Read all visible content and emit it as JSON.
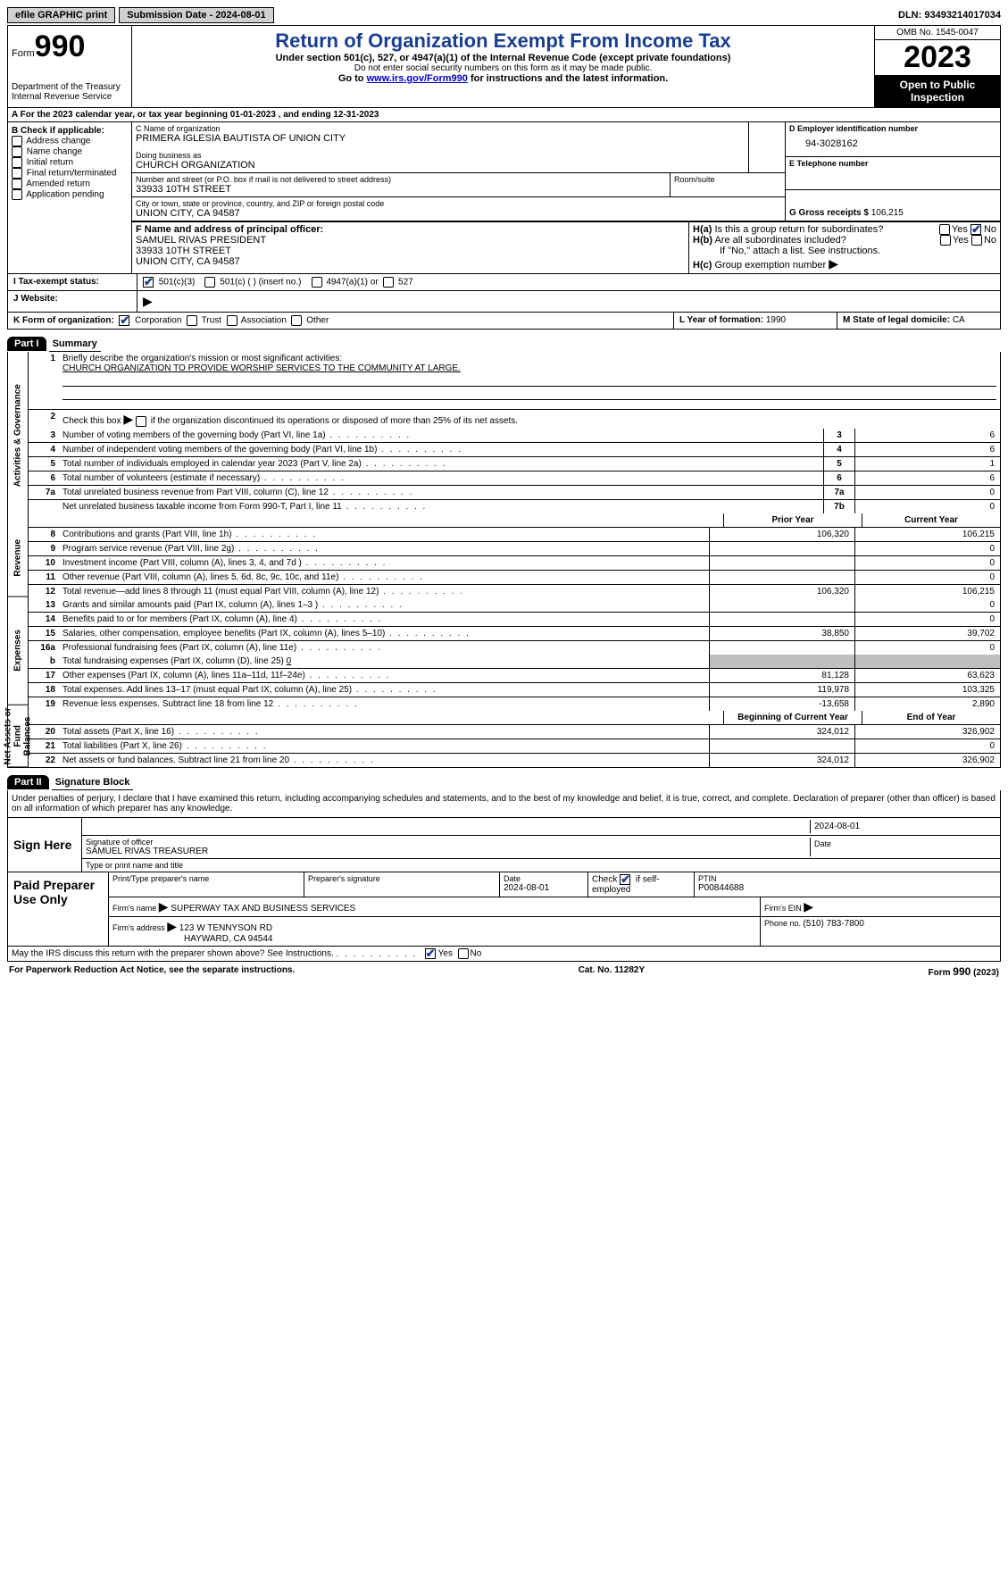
{
  "top": {
    "efile": "efile GRAPHIC print",
    "submission": "Submission Date - 2024-08-01",
    "dln": "DLN: 93493214017034"
  },
  "header": {
    "form_prefix": "Form",
    "form_num": "990",
    "dept": "Department of the Treasury",
    "irs": "Internal Revenue Service",
    "title": "Return of Organization Exempt From Income Tax",
    "sub1": "Under section 501(c), 527, or 4947(a)(1) of the Internal Revenue Code (except private foundations)",
    "sub2": "Do not enter social security numbers on this form as it may be made public.",
    "sub3_a": "Go to ",
    "sub3_link": "www.irs.gov/Form990",
    "sub3_b": " for instructions and the latest information.",
    "omb": "OMB No. 1545-0047",
    "year": "2023",
    "open": "Open to Public Inspection"
  },
  "rowA": {
    "prefix": "A For the 2023 calendar year, or tax year beginning ",
    "begin": "01-01-2023",
    "mid": "   , and ending ",
    "end": "12-31-2023"
  },
  "B": {
    "label": "B Check if applicable:",
    "items": [
      "Address change",
      "Name change",
      "Initial return",
      "Final return/terminated",
      "Amended return",
      "Application pending"
    ]
  },
  "C": {
    "name_lbl": "C Name of organization",
    "name": "PRIMERA IGLESIA BAUTISTA OF UNION CITY",
    "dba_lbl": "Doing business as",
    "dba": "CHURCH ORGANIZATION",
    "addr_lbl": "Number and street (or P.O. box if mail is not delivered to street address)",
    "addr": "33933 10TH STREET",
    "room_lbl": "Room/suite",
    "city_lbl": "City or town, state or province, country, and ZIP or foreign postal code",
    "city": "UNION CITY, CA  94587"
  },
  "D": {
    "lbl": "D Employer identification number",
    "val": "94-3028162"
  },
  "E": {
    "lbl": "E Telephone number"
  },
  "G": {
    "lbl": "G Gross receipts $ ",
    "val": "106,215"
  },
  "F": {
    "lbl": "F  Name and address of principal officer:",
    "name": "SAMUEL RIVAS PRESIDENT",
    "addr1": "33933 10TH STREET",
    "addr2": "UNION CITY, CA  94587"
  },
  "H": {
    "a": "H(a)  Is this a group return for subordinates?",
    "b": "H(b)  Are all subordinates included?",
    "b_note": "If \"No,\" attach a list. See instructions.",
    "c": "H(c)  Group exemption number ",
    "yes": "Yes",
    "no": "No"
  },
  "I": {
    "lbl": "I    Tax-exempt status:",
    "o1": "501(c)(3)",
    "o2": "501(c) (  ) (insert no.)",
    "o3": "4947(a)(1) or",
    "o4": "527"
  },
  "J": {
    "lbl": "J    Website: "
  },
  "K": {
    "lbl": "K Form of organization:",
    "o1": "Corporation",
    "o2": "Trust",
    "o3": "Association",
    "o4": "Other"
  },
  "L": {
    "lbl": "L Year of formation: ",
    "val": "1990"
  },
  "M": {
    "lbl": "M State of legal domicile: ",
    "val": "CA"
  },
  "part1": {
    "hdr": "Part I",
    "title": "Summary"
  },
  "side": {
    "ag": "Activities & Governance",
    "rev": "Revenue",
    "exp": "Expenses",
    "na": "Net Assets or Fund Balances"
  },
  "s1": {
    "lbl": "Briefly describe the organization's mission or most significant activities:",
    "val": "CHURCH ORGANIZATION TO PROVIDE WORSHIP SERVICES TO THE COMMUNITY AT LARGE."
  },
  "s2": "Check this box        if the organization discontinued its operations or disposed of more than 25% of its net assets.",
  "rows_ag": [
    {
      "n": "3",
      "d": "Number of voting members of the governing body (Part VI, line 1a)",
      "bx": "3",
      "cv": "6"
    },
    {
      "n": "4",
      "d": "Number of independent voting members of the governing body (Part VI, line 1b)",
      "bx": "4",
      "cv": "6"
    },
    {
      "n": "5",
      "d": "Total number of individuals employed in calendar year 2023 (Part V, line 2a)",
      "bx": "5",
      "cv": "1"
    },
    {
      "n": "6",
      "d": "Total number of volunteers (estimate if necessary)",
      "bx": "6",
      "cv": "6"
    },
    {
      "n": "7a",
      "d": "Total unrelated business revenue from Part VIII, column (C), line 12",
      "bx": "7a",
      "cv": "0"
    },
    {
      "n": "",
      "d": "Net unrelated business taxable income from Form 990-T, Part I, line 11",
      "bx": "7b",
      "cv": "0"
    }
  ],
  "col_hdr": {
    "prior": "Prior Year",
    "current": "Current Year"
  },
  "rows_rev": [
    {
      "n": "8",
      "d": "Contributions and grants (Part VIII, line 1h)",
      "pv": "106,320",
      "cv": "106,215"
    },
    {
      "n": "9",
      "d": "Program service revenue (Part VIII, line 2g)",
      "pv": "",
      "cv": "0"
    },
    {
      "n": "10",
      "d": "Investment income (Part VIII, column (A), lines 3, 4, and 7d )",
      "pv": "",
      "cv": "0"
    },
    {
      "n": "11",
      "d": "Other revenue (Part VIII, column (A), lines 5, 6d, 8c, 9c, 10c, and 11e)",
      "pv": "",
      "cv": "0"
    },
    {
      "n": "12",
      "d": "Total revenue—add lines 8 through 11 (must equal Part VIII, column (A), line 12)",
      "pv": "106,320",
      "cv": "106,215"
    }
  ],
  "rows_exp": [
    {
      "n": "13",
      "d": "Grants and similar amounts paid (Part IX, column (A), lines 1–3 )",
      "pv": "",
      "cv": "0"
    },
    {
      "n": "14",
      "d": "Benefits paid to or for members (Part IX, column (A), line 4)",
      "pv": "",
      "cv": "0"
    },
    {
      "n": "15",
      "d": "Salaries, other compensation, employee benefits (Part IX, column (A), lines 5–10)",
      "pv": "38,850",
      "cv": "39,702"
    },
    {
      "n": "16a",
      "d": "Professional fundraising fees (Part IX, column (A), line 11e)",
      "pv": "",
      "cv": "0"
    }
  ],
  "row_16b": {
    "n": "b",
    "d_a": "Total fundraising expenses (Part IX, column (D), line 25) ",
    "d_b": "0"
  },
  "rows_exp2": [
    {
      "n": "17",
      "d": "Other expenses (Part IX, column (A), lines 11a–11d, 11f–24e)",
      "pv": "81,128",
      "cv": "63,623"
    },
    {
      "n": "18",
      "d": "Total expenses. Add lines 13–17 (must equal Part IX, column (A), line 25)",
      "pv": "119,978",
      "cv": "103,325"
    },
    {
      "n": "19",
      "d": "Revenue less expenses. Subtract line 18 from line 12",
      "pv": "-13,658",
      "cv": "2,890"
    }
  ],
  "col_hdr2": {
    "begin": "Beginning of Current Year",
    "end": "End of Year"
  },
  "rows_na": [
    {
      "n": "20",
      "d": "Total assets (Part X, line 16)",
      "pv": "324,012",
      "cv": "326,902"
    },
    {
      "n": "21",
      "d": "Total liabilities (Part X, line 26)",
      "pv": "",
      "cv": "0"
    },
    {
      "n": "22",
      "d": "Net assets or fund balances. Subtract line 21 from line 20",
      "pv": "324,012",
      "cv": "326,902"
    }
  ],
  "part2": {
    "hdr": "Part II",
    "title": "Signature Block"
  },
  "sig": {
    "decl": "Under penalties of perjury, I declare that I have examined this return, including accompanying schedules and statements, and to the best of my knowledge and belief, it is true, correct, and complete. Declaration of preparer (other than officer) is based on all information of which preparer has any knowledge.",
    "here": "Sign Here",
    "officer_sig_lbl": "Signature of officer",
    "officer_name": "SAMUEL RIVAS  TREASURER",
    "officer_title_lbl": "Type or print name and title",
    "date_lbl": "Date",
    "date": "2024-08-01"
  },
  "prep": {
    "title": "Paid Preparer Use Only",
    "name_lbl": "Print/Type preparer's name",
    "sig_lbl": "Preparer's signature",
    "date_lbl": "Date",
    "date": "2024-08-01",
    "check_lbl_a": "Check",
    "check_lbl_b": "if self-employed",
    "ptin_lbl": "PTIN",
    "ptin": "P00844688",
    "firm_name_lbl": "Firm's name   ",
    "firm_name": "SUPERWAY TAX AND BUSINESS SERVICES",
    "firm_ein_lbl": "Firm's EIN ",
    "firm_addr_lbl": "Firm's address ",
    "firm_addr1": "123 W TENNYSON RD",
    "firm_addr2": "HAYWARD, CA  94544",
    "phone_lbl": "Phone no. ",
    "phone": "(510) 783-7800"
  },
  "discuss": {
    "q": "May the IRS discuss this return with the preparer shown above? See Instructions.",
    "yes": "Yes",
    "no": "No"
  },
  "footer": {
    "left": "For Paperwork Reduction Act Notice, see the separate instructions.",
    "mid": "Cat. No. 11282Y",
    "right_a": "Form ",
    "right_b": "990",
    "right_c": " (2023)"
  }
}
